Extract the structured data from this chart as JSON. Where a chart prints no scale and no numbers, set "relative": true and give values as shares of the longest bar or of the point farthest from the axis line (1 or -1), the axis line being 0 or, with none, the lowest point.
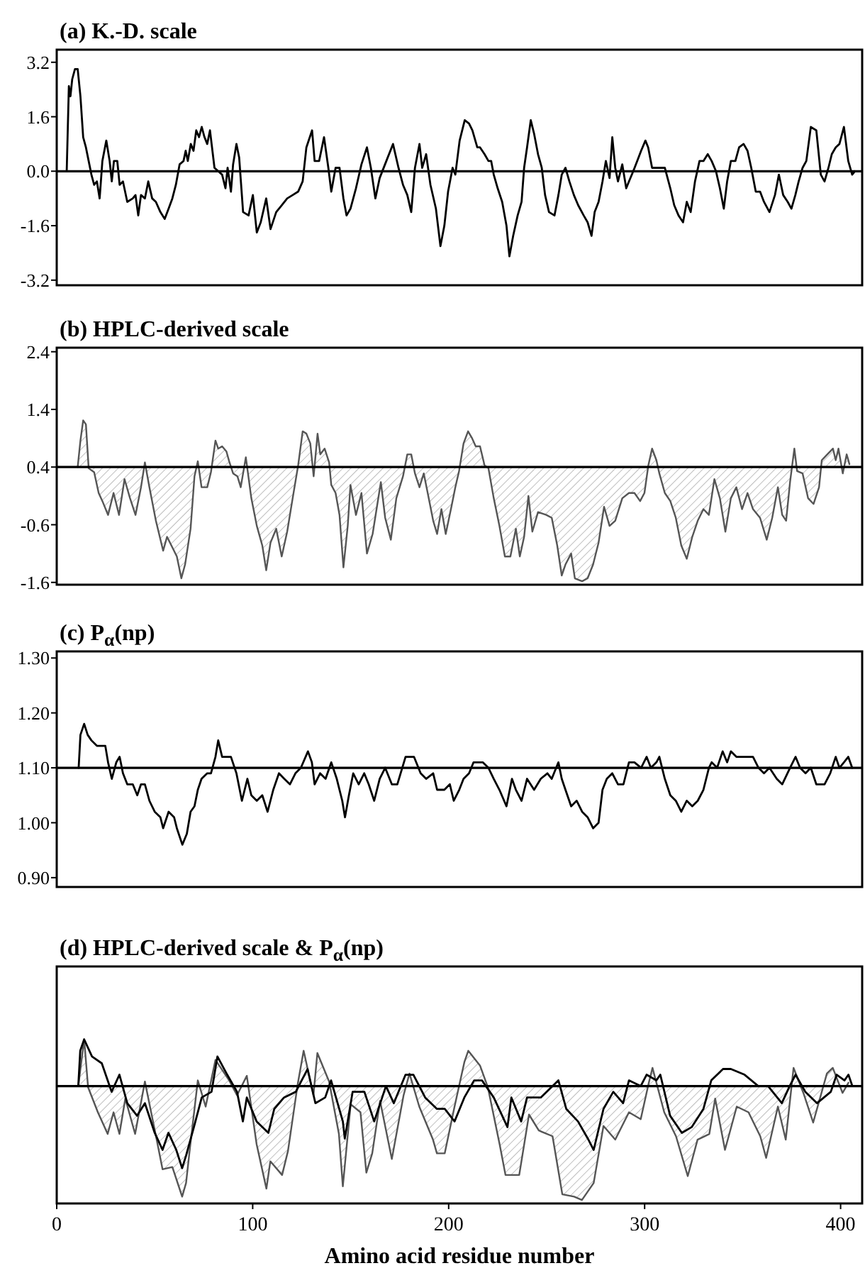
{
  "chart_data": [
    {
      "type": "line",
      "title": "(a) K.-D. scale",
      "xlim": [
        0,
        411
      ],
      "ylim": [
        -3.35,
        3.57
      ],
      "tick_labels": "y",
      "yticks": [
        3.2,
        1.6,
        {
          "value": 0,
          "label": "0.0"
        },
        -1.6,
        -3.2
      ],
      "ref_lines": [
        {
          "axis": "y",
          "value": 0,
          "color": "#000000"
        }
      ],
      "series": [
        {
          "color": "#000000",
          "x": [
            5.1,
            6.2,
            7,
            7.9,
            9.3,
            10.7,
            12.1,
            13.5,
            14.9,
            16.3,
            17.7,
            19.1,
            20.5,
            21.9,
            23.3,
            25.3,
            27,
            28.1,
            29.2,
            30.9,
            32.1,
            33.8,
            36,
            38.8,
            40.2,
            41.6,
            43,
            45,
            46.7,
            48.7,
            50.6,
            52.9,
            55.1,
            57.1,
            59,
            60.8,
            62.7,
            64.7,
            65.8,
            66.9,
            68.4,
            69.8,
            71.2,
            72.6,
            74,
            75.4,
            76.8,
            78.2,
            80.5,
            82.4,
            84.4,
            86.1,
            87.2,
            88.9,
            90,
            91.7,
            93.1,
            95.1,
            97.9,
            100.1,
            102.1,
            104.1,
            106.9,
            109.1,
            112,
            114.8,
            117.6,
            120.4,
            123.2,
            125.5,
            127.4,
            130.3,
            131.6,
            133.9,
            136.4,
            138.6,
            140.1,
            142.3,
            144.3,
            146.3,
            147.9,
            149.9,
            152.7,
            155.5,
            158.3,
            160.3,
            162.6,
            164.8,
            168.2,
            171.6,
            174.4,
            176.7,
            178.9,
            180.9,
            182.8,
            185.1,
            186.5,
            188.5,
            190.7,
            193.5,
            195.8,
            197.8,
            199.7,
            202,
            203.4,
            205.6,
            208.2,
            210.4,
            212.1,
            214.6,
            216,
            218.3,
            220.3,
            221.7,
            223,
            225,
            227.3,
            229.5,
            231,
            232.9,
            235.2,
            237.2,
            238.5,
            240,
            241.9,
            243.6,
            245.6,
            247.5,
            249.2,
            251.2,
            254,
            256,
            257.7,
            259.6,
            261.6,
            263.9,
            266.1,
            268.9,
            270.9,
            272.9,
            274.5,
            276.5,
            278.5,
            280.2,
            282.1,
            283.5,
            285,
            286.4,
            288.6,
            290.6,
            292,
            294.2,
            296.2,
            298.2,
            300.4,
            301.8,
            303.8,
            306,
            310.3,
            313.1,
            315.1,
            317.3,
            319.6,
            321.5,
            323.5,
            325.7,
            328,
            330,
            332.2,
            334.2,
            336.4,
            338.4,
            340.4,
            342.1,
            344,
            346.3,
            348.2,
            350.5,
            352.5,
            354.4,
            356.7,
            358.9,
            360.9,
            363.7,
            366.5,
            368.5,
            370.7,
            373,
            374.9,
            376.9,
            378.6,
            380.6,
            382.5,
            384.8,
            387.6,
            389.9,
            391.8,
            393.8,
            395.5,
            397.5,
            399.4,
            401.7,
            403.9,
            405.9,
            407.3
          ],
          "values": [
            0,
            2.5,
            2.2,
            2.7,
            3.0,
            3.0,
            2.2,
            1.0,
            0.7,
            0.3,
            -0.1,
            -0.4,
            -0.3,
            -0.8,
            0.3,
            0.9,
            0.3,
            -0.3,
            0.3,
            0.3,
            -0.4,
            -0.3,
            -0.9,
            -0.8,
            -0.7,
            -1.3,
            -0.7,
            -0.8,
            -0.3,
            -0.8,
            -0.9,
            -1.2,
            -1.4,
            -1.1,
            -0.8,
            -0.4,
            0.2,
            0.3,
            0.6,
            0.3,
            0.8,
            0.6,
            1.2,
            1.0,
            1.3,
            1.0,
            0.8,
            1.2,
            0.1,
            0,
            -0.1,
            -0.5,
            0.1,
            -0.6,
            0.2,
            0.8,
            0.4,
            -1.2,
            -1.3,
            -0.7,
            -1.8,
            -1.5,
            -0.8,
            -1.7,
            -1.2,
            -1.0,
            -0.8,
            -0.7,
            -0.6,
            -0.3,
            0.7,
            1.2,
            0.3,
            0.3,
            1.0,
            0.1,
            -0.6,
            0.1,
            0.1,
            -0.8,
            -1.3,
            -1.1,
            -0.5,
            0.2,
            0.7,
            0.1,
            -0.8,
            -0.2,
            0.3,
            0.8,
            0.1,
            -0.4,
            -0.7,
            -1.2,
            0.1,
            0.8,
            0.1,
            0.5,
            -0.4,
            -1.1,
            -2.2,
            -1.6,
            -0.6,
            0.1,
            -0.1,
            0.9,
            1.5,
            1.4,
            1.2,
            0.7,
            0.7,
            0.5,
            0.3,
            0.3,
            -0.1,
            -0.5,
            -0.9,
            -1.6,
            -2.5,
            -1.9,
            -1.3,
            -0.9,
            0.1,
            0.7,
            1.5,
            1.1,
            0.5,
            0.1,
            -0.7,
            -1.2,
            -1.3,
            -0.7,
            -0.1,
            0.1,
            -0.3,
            -0.7,
            -1.0,
            -1.3,
            -1.5,
            -1.9,
            -1.2,
            -0.9,
            -0.3,
            0.3,
            -0.2,
            1.0,
            0.1,
            -0.3,
            0.2,
            -0.5,
            -0.3,
            0,
            0.3,
            0.6,
            0.9,
            0.7,
            0.1,
            0.1,
            0.1,
            -0.5,
            -1.0,
            -1.3,
            -1.5,
            -0.9,
            -1.2,
            -0.3,
            0.3,
            0.3,
            0.5,
            0.3,
            0,
            -0.5,
            -1.1,
            -0.3,
            0.3,
            0.3,
            0.7,
            0.8,
            0.6,
            0.1,
            -0.6,
            -0.6,
            -0.9,
            -1.2,
            -0.7,
            -0.1,
            -0.7,
            -0.9,
            -1.1,
            -0.7,
            -0.3,
            0.1,
            0.3,
            1.3,
            1.2,
            -0.1,
            -0.3,
            0.1,
            0.5,
            0.7,
            0.8,
            1.3,
            0.3,
            -0.1,
            0
          ]
        }
      ]
    },
    {
      "type": "area",
      "title": "(b) HPLC-derived scale",
      "xlim": [
        0,
        411
      ],
      "ylim": [
        -1.64,
        2.47
      ],
      "tick_labels": "y",
      "yticks": [
        2.4,
        1.4,
        0.4,
        -0.6,
        -1.6
      ],
      "ref_lines": [
        {
          "axis": "y",
          "value": 0.4,
          "color": "#000000"
        }
      ],
      "series": [
        {
          "color": "#555555",
          "x": [
            10.7,
            12.1,
            13.5,
            14.9,
            16.3,
            19.1,
            21.4,
            23.3,
            26.2,
            29,
            31.8,
            34.6,
            37.4,
            40.2,
            43,
            45,
            47.3,
            50.6,
            54.3,
            56.3,
            59.1,
            61.3,
            63.6,
            65.5,
            68.3,
            70.3,
            72,
            73.9,
            76.8,
            78.7,
            81,
            82.4,
            84.4,
            86.6,
            88,
            90,
            92.2,
            93.9,
            96.5,
            99.3,
            102.1,
            104.9,
            106.9,
            109.1,
            112,
            114.8,
            117.6,
            120.4,
            123.2,
            125.5,
            127.4,
            129.4,
            131.1,
            133.1,
            134.5,
            136.7,
            139,
            140.1,
            142.3,
            144.3,
            146.3,
            148.5,
            149.9,
            152.7,
            155.5,
            158.3,
            161.2,
            165.4,
            167.6,
            170.5,
            173.3,
            176.7,
            178.9,
            180.9,
            182.8,
            185.1,
            187.3,
            189.3,
            192.1,
            194.1,
            196.3,
            198.5,
            201.4,
            203.4,
            205.3,
            207.6,
            209.9,
            211.8,
            213.8,
            216,
            218.3,
            220.3,
            223,
            225.9,
            228.7,
            231.5,
            234.3,
            236.3,
            238.5,
            240.7,
            242.7,
            245.6,
            249.8,
            252.6,
            255.4,
            257.7,
            259.6,
            262.5,
            264.4,
            268.1,
            270.9,
            273.7,
            276.5,
            279.3,
            282.1,
            285,
            288.6,
            292,
            294.8,
            297.7,
            299.9,
            301.9,
            303.8,
            306,
            307.5,
            310.3,
            313.1,
            315.9,
            318.7,
            321.5,
            324.3,
            327.1,
            330,
            332.8,
            335.6,
            338.4,
            341.2,
            344,
            346.8,
            349.7,
            352.5,
            355.3,
            358.9,
            362.3,
            365.1,
            368,
            370.2,
            372.2,
            374.2,
            376.4,
            377.8,
            380.6,
            383.4,
            386.2,
            389,
            390.4,
            393.2,
            396.1,
            397.5,
            398.9,
            401.1,
            403.1,
            404.5
          ],
          "values": [
            0.4,
            0.86,
            1.21,
            1.14,
            0.38,
            0.31,
            -0.05,
            -0.19,
            -0.43,
            -0.05,
            -0.43,
            0.19,
            -0.14,
            -0.43,
            0.05,
            0.48,
            0.05,
            -0.53,
            -1.05,
            -0.81,
            -1.0,
            -1.15,
            -1.53,
            -1.29,
            -0.67,
            0.24,
            0.5,
            0.05,
            0.05,
            0.31,
            0.86,
            0.72,
            0.76,
            0.67,
            0.5,
            0.29,
            0.24,
            0.05,
            0.57,
            -0.14,
            -0.62,
            -0.96,
            -1.39,
            -0.91,
            -0.67,
            -1.15,
            -0.72,
            -0.14,
            0.43,
            1.02,
            0.98,
            0.81,
            0.24,
            0.98,
            0.62,
            0.72,
            0.48,
            0.09,
            -0.05,
            -0.43,
            -1.34,
            -0.62,
            0.09,
            -0.43,
            -0.05,
            -1.1,
            -0.76,
            0.14,
            -0.48,
            -0.86,
            -0.14,
            0.24,
            0.62,
            0.62,
            0.29,
            0.05,
            0.29,
            -0.05,
            -0.53,
            -0.76,
            -0.33,
            -0.76,
            -0.29,
            0.05,
            0.33,
            0.81,
            1.02,
            0.91,
            0.76,
            0.76,
            0.43,
            0.38,
            -0.14,
            -0.62,
            -1.15,
            -1.15,
            -0.67,
            -1.15,
            -0.81,
            -0.1,
            -0.72,
            -0.38,
            -0.43,
            -0.48,
            -0.96,
            -1.48,
            -1.29,
            -1.1,
            -1.53,
            -1.58,
            -1.53,
            -1.29,
            -0.91,
            -0.29,
            -0.62,
            -0.53,
            -0.14,
            -0.05,
            -0.05,
            -0.19,
            -0.05,
            0.43,
            0.72,
            0.52,
            0.29,
            -0.05,
            -0.19,
            -0.48,
            -0.96,
            -1.19,
            -0.81,
            -0.53,
            -0.33,
            -0.43,
            0.19,
            -0.14,
            -0.72,
            -0.14,
            0.05,
            -0.33,
            -0.05,
            -0.33,
            -0.48,
            -0.86,
            -0.48,
            0.05,
            -0.43,
            -0.53,
            0.14,
            0.72,
            0.33,
            0.29,
            -0.14,
            -0.24,
            0.05,
            0.52,
            0.62,
            0.72,
            0.52,
            0.72,
            0.29,
            0.62,
            0.45
          ]
        }
      ]
    },
    {
      "type": "line",
      "title": "(c) P$_{α}$(np)",
      "xlim": [
        0,
        411
      ],
      "ylim": [
        0.883,
        1.312
      ],
      "tick_labels": "y",
      "yticks": [
        {
          "value": 1.3,
          "label": "1.30"
        },
        {
          "value": 1.2,
          "label": "1.20"
        },
        {
          "value": 1.1,
          "label": "1.10"
        },
        {
          "value": 1.0,
          "label": "1.00"
        },
        {
          "value": 0.9,
          "label": "0.90"
        }
      ],
      "ref_lines": [
        {
          "axis": "y",
          "value": 1.1,
          "color": "#000000"
        }
      ],
      "series": [
        {
          "color": "#000000",
          "x": [
            11.2,
            12.1,
            14,
            15.8,
            17.7,
            20.5,
            23.3,
            24.8,
            26.2,
            28.1,
            30.4,
            32.1,
            33.8,
            36,
            38.8,
            41.1,
            43,
            45,
            47.3,
            50,
            52.9,
            54.3,
            57.1,
            59.9,
            61.3,
            64.1,
            66.4,
            68.3,
            70.3,
            72,
            73.9,
            76.8,
            78.7,
            81,
            82.4,
            84.4,
            86.6,
            88.9,
            91.7,
            94.5,
            97.3,
            99.3,
            102.1,
            104.9,
            107.6,
            110.5,
            113.4,
            116.1,
            119,
            121.8,
            124.6,
            128.2,
            130.2,
            131.6,
            134.4,
            137.2,
            140.1,
            142.9,
            145.7,
            147.1,
            149.1,
            151.3,
            154.1,
            156.9,
            159.2,
            162,
            164.8,
            167.6,
            171,
            173.8,
            178,
            182.3,
            185.7,
            188.5,
            192.1,
            194.1,
            197.8,
            200.6,
            202.6,
            205.4,
            207.6,
            210.4,
            212.7,
            217.4,
            220.3,
            223,
            225.9,
            229.5,
            232.3,
            234.3,
            237.2,
            240,
            243.6,
            247,
            250.4,
            252.6,
            256,
            257.7,
            259.6,
            262.5,
            265.3,
            268.1,
            270.9,
            273.7,
            276.5,
            278.5,
            280.7,
            283.5,
            286.4,
            289.2,
            292,
            294.8,
            298.2,
            301,
            303.2,
            306,
            307.5,
            310.3,
            313.1,
            315.9,
            318.7,
            321.5,
            324.3,
            327.1,
            330,
            332.8,
            334.2,
            337,
            339.8,
            342.1,
            344,
            346.8,
            351,
            355.3,
            358.1,
            360.9,
            363.7,
            367.4,
            370.2,
            374.2,
            377,
            379.3,
            382.1,
            384.8,
            387.6,
            391.8,
            394.7,
            397.5,
            399.4,
            401.7,
            403.9,
            405.9
          ],
          "values": [
            1.1,
            1.16,
            1.18,
            1.16,
            1.15,
            1.14,
            1.14,
            1.14,
            1.11,
            1.08,
            1.11,
            1.12,
            1.09,
            1.07,
            1.07,
            1.05,
            1.07,
            1.07,
            1.04,
            1.02,
            1.01,
            0.99,
            1.02,
            1.01,
            0.99,
            0.96,
            0.98,
            1.02,
            1.03,
            1.06,
            1.08,
            1.09,
            1.09,
            1.12,
            1.15,
            1.12,
            1.12,
            1.12,
            1.09,
            1.04,
            1.08,
            1.05,
            1.04,
            1.05,
            1.02,
            1.06,
            1.09,
            1.08,
            1.07,
            1.09,
            1.1,
            1.13,
            1.11,
            1.07,
            1.09,
            1.08,
            1.11,
            1.08,
            1.04,
            1.01,
            1.05,
            1.09,
            1.07,
            1.09,
            1.07,
            1.04,
            1.08,
            1.1,
            1.07,
            1.07,
            1.12,
            1.12,
            1.09,
            1.08,
            1.09,
            1.06,
            1.06,
            1.07,
            1.04,
            1.06,
            1.08,
            1.09,
            1.11,
            1.11,
            1.1,
            1.08,
            1.06,
            1.03,
            1.08,
            1.06,
            1.04,
            1.08,
            1.06,
            1.08,
            1.09,
            1.08,
            1.11,
            1.08,
            1.06,
            1.03,
            1.04,
            1.02,
            1.01,
            0.99,
            1.0,
            1.06,
            1.08,
            1.09,
            1.07,
            1.07,
            1.11,
            1.11,
            1.1,
            1.12,
            1.1,
            1.11,
            1.12,
            1.08,
            1.05,
            1.04,
            1.02,
            1.04,
            1.03,
            1.04,
            1.06,
            1.1,
            1.11,
            1.1,
            1.13,
            1.11,
            1.13,
            1.12,
            1.12,
            1.12,
            1.1,
            1.09,
            1.1,
            1.08,
            1.07,
            1.1,
            1.12,
            1.1,
            1.09,
            1.1,
            1.07,
            1.07,
            1.09,
            1.12,
            1.1,
            1.11,
            1.12,
            1.1
          ]
        }
      ]
    },
    {
      "type": "line",
      "relative": true,
      "title": "(d) HPLC-derived scale & P$_{α}$(np)",
      "xlabel": "Amino acid residue number",
      "xlim": [
        0,
        411
      ],
      "tick_labels": "x",
      "xticks": [
        0,
        100,
        200,
        300,
        400
      ],
      "series": [
        {
          "type": "area",
          "color": "#555555",
          "x": [
            11,
            14,
            16,
            21,
            26,
            29,
            32,
            35,
            40,
            45,
            51,
            54,
            59,
            64,
            66,
            68,
            72,
            76,
            81,
            88,
            92,
            97,
            102,
            107,
            109,
            115,
            118,
            123,
            126,
            131,
            133,
            139,
            144,
            146,
            150,
            155,
            158,
            161,
            165,
            171,
            177,
            180,
            185,
            192,
            194,
            198,
            203,
            208,
            210,
            216,
            220,
            226,
            229,
            232,
            236,
            241,
            246,
            253,
            258,
            264,
            268,
            274,
            279,
            285,
            292,
            298,
            302,
            304,
            310,
            316,
            322,
            327,
            333,
            336,
            341,
            347,
            353,
            359,
            362,
            368,
            372,
            376,
            381,
            386,
            393,
            396,
            401,
            404
          ],
          "values": [
            0,
            0.41,
            -0.01,
            -0.23,
            -0.42,
            -0.23,
            -0.42,
            -0.11,
            -0.42,
            0.04,
            -0.47,
            -0.73,
            -0.71,
            -0.97,
            -0.85,
            -0.54,
            0.05,
            -0.18,
            0.23,
            0.05,
            -0.08,
            0.09,
            -0.51,
            -0.9,
            -0.66,
            -0.78,
            -0.57,
            0.02,
            0.31,
            -0.08,
            0.29,
            0.04,
            -0.42,
            -0.88,
            -0.16,
            -0.23,
            -0.76,
            -0.59,
            -0.13,
            -0.64,
            -0.08,
            0.11,
            -0.18,
            -0.47,
            -0.59,
            -0.59,
            -0.18,
            0.21,
            0.31,
            0.18,
            -0.01,
            -0.51,
            -0.78,
            -0.78,
            -0.78,
            -0.25,
            -0.39,
            -0.44,
            -0.95,
            -0.97,
            -1.0,
            -0.85,
            -0.35,
            -0.47,
            -0.23,
            -0.29,
            0.02,
            0.16,
            -0.23,
            -0.44,
            -0.79,
            -0.47,
            -0.42,
            -0.11,
            -0.56,
            -0.18,
            -0.23,
            -0.44,
            -0.63,
            -0.18,
            -0.47,
            0.16,
            -0.06,
            -0.32,
            0.11,
            0.16,
            -0.06,
            0.03
          ]
        },
        {
          "color": "#000000",
          "x": [
            11,
            12,
            14,
            18,
            23,
            26,
            28,
            32,
            36,
            41,
            45,
            50,
            54,
            57,
            61,
            64,
            66,
            70,
            74,
            79,
            82,
            87,
            92,
            95,
            97,
            102,
            108,
            111,
            116,
            122,
            128,
            132,
            137,
            140,
            146,
            147,
            151,
            157,
            162,
            168,
            172,
            178,
            182,
            188,
            194,
            198,
            203,
            208,
            213,
            217,
            223,
            230,
            232,
            237,
            240,
            247,
            256,
            260,
            266,
            271,
            274,
            279,
            284,
            289,
            292,
            298,
            301,
            306,
            308,
            313,
            319,
            324,
            330,
            334,
            340,
            344,
            351,
            358,
            363,
            370,
            374,
            377,
            382,
            388,
            395,
            398,
            402,
            404,
            406
          ],
          "values": [
            0,
            0.31,
            0.41,
            0.26,
            0.2,
            0.05,
            -0.05,
            0.1,
            -0.15,
            -0.26,
            -0.15,
            -0.41,
            -0.56,
            -0.41,
            -0.56,
            -0.72,
            -0.61,
            -0.36,
            -0.1,
            -0.05,
            0.26,
            0.1,
            -0.05,
            -0.31,
            -0.1,
            -0.31,
            -0.41,
            -0.2,
            -0.1,
            -0.05,
            0.15,
            -0.15,
            -0.1,
            0.05,
            -0.31,
            -0.46,
            -0.05,
            -0.05,
            -0.31,
            0,
            -0.15,
            0.1,
            0.1,
            -0.1,
            -0.2,
            -0.2,
            -0.31,
            -0.1,
            0.05,
            0.05,
            -0.1,
            -0.36,
            -0.1,
            -0.31,
            -0.1,
            -0.1,
            0.05,
            -0.2,
            -0.31,
            -0.46,
            -0.56,
            -0.2,
            -0.05,
            -0.15,
            0.05,
            0,
            0.1,
            0.05,
            0.1,
            -0.26,
            -0.41,
            -0.36,
            -0.2,
            0.05,
            0.15,
            0.15,
            0.1,
            0,
            0,
            -0.15,
            0,
            0.1,
            -0.05,
            -0.15,
            -0.05,
            0.1,
            0.05,
            0.1,
            0
          ]
        }
      ]
    }
  ]
}
